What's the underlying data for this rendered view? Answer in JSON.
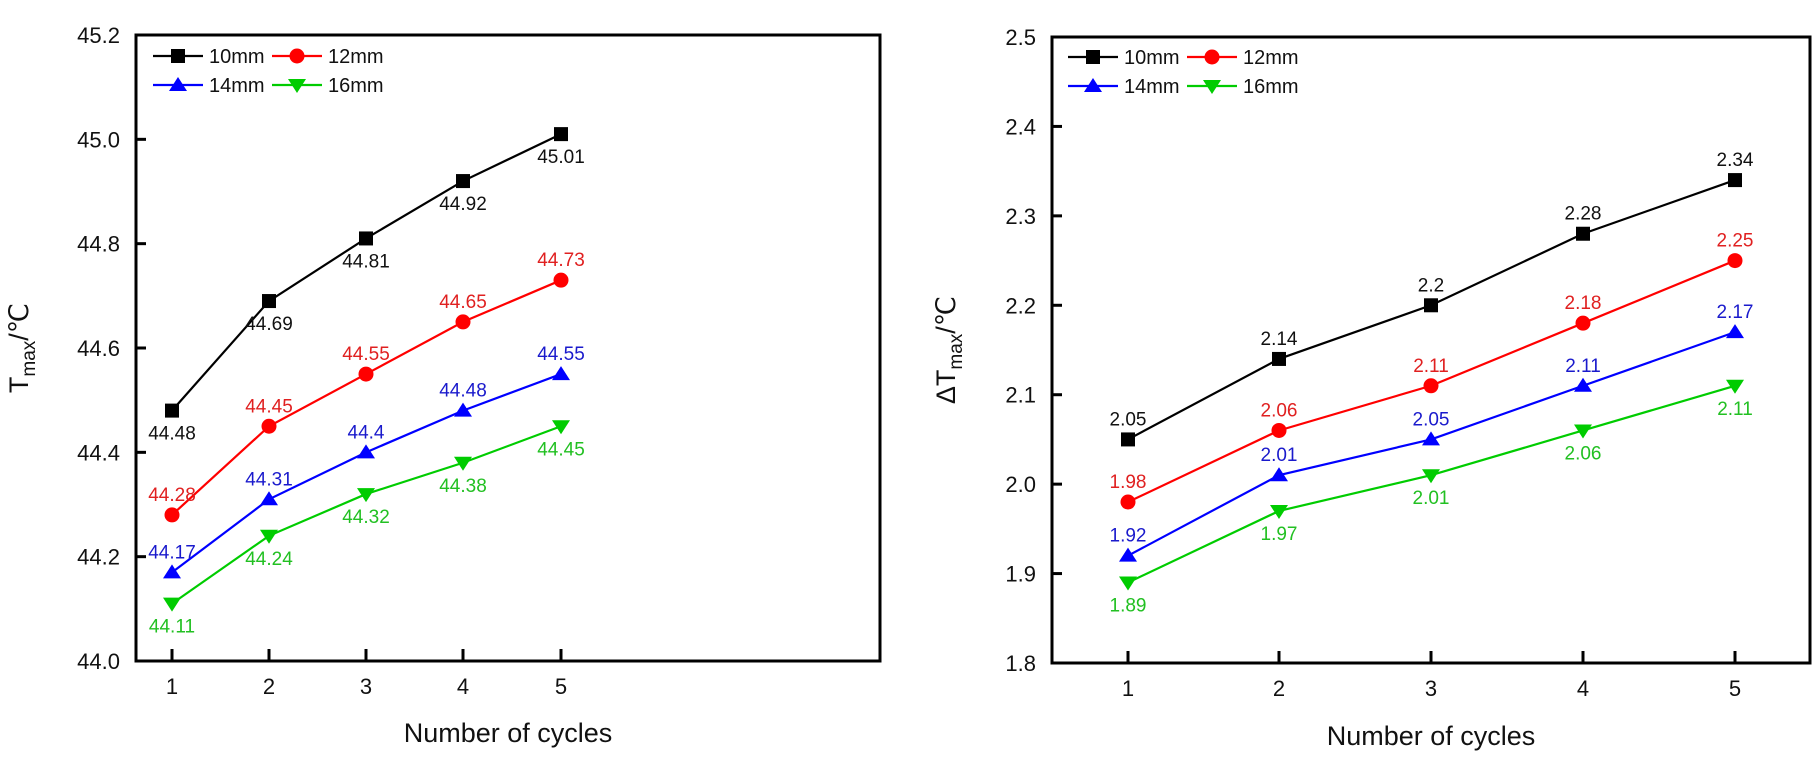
{
  "chart_data": [
    {
      "type": "line",
      "title": "",
      "xlabel": "Number of cycles",
      "ylabel": "T",
      "ylabel_subscript": "max",
      "ylabel_unit": "/℃",
      "x": [
        1,
        2,
        3,
        4,
        5
      ],
      "x_tick_labels": [
        "1",
        "2",
        "3",
        "4",
        "5"
      ],
      "xlim": [
        0.63,
        6.0
      ],
      "ylim": [
        44.0,
        45.2
      ],
      "y_ticks": [
        44.0,
        44.2,
        44.4,
        44.6,
        44.8,
        45.0,
        45.2
      ],
      "y_tick_labels": [
        "44.0",
        "44.2",
        "44.4",
        "44.6",
        "44.8",
        "45.0",
        "45.2"
      ],
      "grid": false,
      "legend_placement": "top-left",
      "series": [
        {
          "name": "10mm",
          "color": "#000000",
          "marker": "square",
          "values": [
            44.48,
            44.69,
            44.81,
            44.92,
            45.01
          ],
          "labels": [
            "44.48",
            "44.69",
            "44.81",
            "44.92",
            "45.01"
          ],
          "label_position": "below"
        },
        {
          "name": "12mm",
          "color": "#ff0000",
          "marker": "circle",
          "values": [
            44.28,
            44.45,
            44.55,
            44.65,
            44.73
          ],
          "labels": [
            "44.28",
            "44.45",
            "44.55",
            "44.65",
            "44.73"
          ],
          "label_position": "above"
        },
        {
          "name": "14mm",
          "color": "#0000ff",
          "marker": "triangle-up",
          "values": [
            44.17,
            44.31,
            44.4,
            44.48,
            44.55
          ],
          "labels": [
            "44.17",
            "44.31",
            "44.4",
            "44.48",
            "44.55"
          ],
          "label_position": "above"
        },
        {
          "name": "16mm",
          "color": "#00cc00",
          "marker": "triangle-down",
          "values": [
            44.11,
            44.24,
            44.32,
            44.38,
            44.45
          ],
          "labels": [
            "44.11",
            "44.24",
            "44.32",
            "44.38",
            "44.45"
          ],
          "label_position": "below"
        }
      ]
    },
    {
      "type": "line",
      "title": "",
      "xlabel": "Number of cycles",
      "ylabel": "ΔT",
      "ylabel_subscript": "max",
      "ylabel_unit": "/℃",
      "x": [
        1,
        2,
        3,
        4,
        5
      ],
      "x_tick_labels": [
        "1",
        "2",
        "3",
        "4",
        "5"
      ],
      "xlim": [
        0.5,
        5.5
      ],
      "ylim": [
        1.8,
        2.5
      ],
      "y_ticks": [
        1.8,
        1.9,
        2.0,
        2.1,
        2.2,
        2.3,
        2.4,
        2.5
      ],
      "y_tick_labels": [
        "1.8",
        "1.9",
        "2.0",
        "2.1",
        "2.2",
        "2.3",
        "2.4",
        "2.5"
      ],
      "grid": false,
      "legend_placement": "top-left",
      "series": [
        {
          "name": "10mm",
          "color": "#000000",
          "marker": "square",
          "values": [
            2.05,
            2.14,
            2.2,
            2.28,
            2.34
          ],
          "labels": [
            "2.05",
            "2.14",
            "2.2",
            "2.28",
            "2.34"
          ],
          "label_position": "above"
        },
        {
          "name": "12mm",
          "color": "#ff0000",
          "marker": "circle",
          "values": [
            1.98,
            2.06,
            2.11,
            2.18,
            2.25
          ],
          "labels": [
            "1.98",
            "2.06",
            "2.11",
            "2.18",
            "2.25"
          ],
          "label_position": "above"
        },
        {
          "name": "14mm",
          "color": "#0000ff",
          "marker": "triangle-up",
          "values": [
            1.92,
            2.01,
            2.05,
            2.11,
            2.17
          ],
          "labels": [
            "1.92",
            "2.01",
            "2.05",
            "2.11",
            "2.17"
          ],
          "label_position": "above"
        },
        {
          "name": "16mm",
          "color": "#00cc00",
          "marker": "triangle-down",
          "values": [
            1.89,
            1.97,
            2.01,
            2.06,
            2.11
          ],
          "labels": [
            "1.89",
            "1.97",
            "2.01",
            "2.06",
            "2.11"
          ],
          "label_position": "below"
        }
      ]
    }
  ],
  "label_colors": {
    "10mm": "#111111",
    "12mm": "#e02020",
    "14mm": "#1a1acc",
    "16mm": "#22c022"
  }
}
